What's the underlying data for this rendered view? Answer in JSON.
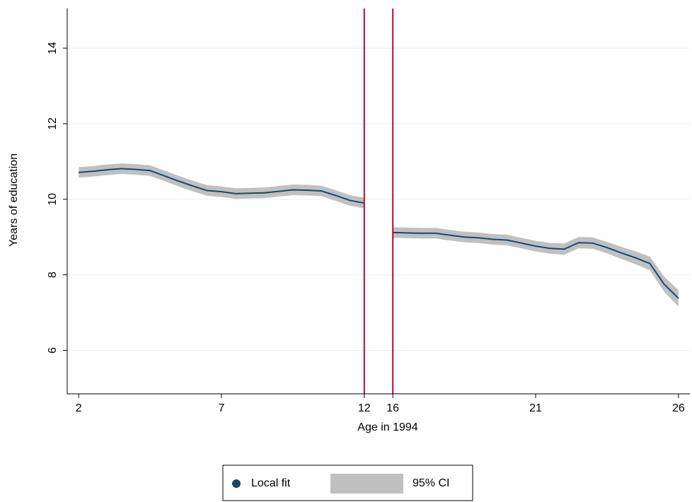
{
  "chart_data": {
    "type": "line",
    "xlabel": "Age in 1994",
    "ylabel": "Years of education",
    "xlim": [
      1.6,
      26.4
    ],
    "xbreak": [
      12,
      16
    ],
    "xticks": [
      2,
      7,
      12,
      16,
      21,
      26
    ],
    "ylim": [
      4.85,
      15.05
    ],
    "yticks": [
      6,
      8,
      10,
      12,
      14
    ],
    "grid": true,
    "reference_lines": {
      "x": [
        12,
        16
      ],
      "color": "#c10534"
    },
    "x": [
      2,
      2.5,
      3,
      3.5,
      4,
      4.5,
      5,
      5.5,
      6,
      6.5,
      7,
      7.5,
      8,
      8.5,
      9,
      9.5,
      10,
      10.5,
      11,
      11.5,
      12,
      null,
      16,
      16.5,
      17,
      17.5,
      18,
      18.5,
      19,
      19.5,
      20,
      20.5,
      21,
      21.5,
      22,
      22.5,
      23,
      23.5,
      24,
      24.5,
      25,
      25.5,
      26
    ],
    "series": [
      {
        "name": "Local fit",
        "color": "#1a476f",
        "values": [
          10.71,
          10.74,
          10.78,
          10.81,
          10.79,
          10.76,
          10.62,
          10.48,
          10.35,
          10.23,
          10.2,
          10.15,
          10.16,
          10.17,
          10.21,
          10.25,
          10.24,
          10.22,
          10.1,
          9.97,
          9.9,
          null,
          9.12,
          9.11,
          9.1,
          9.1,
          9.05,
          9.0,
          8.98,
          8.94,
          8.92,
          8.84,
          8.76,
          8.7,
          8.68,
          8.85,
          8.84,
          8.72,
          8.58,
          8.45,
          8.3,
          7.75,
          7.38
        ]
      }
    ],
    "band": {
      "name": "95% CI",
      "color": "#c0c0c0",
      "upper": [
        10.85,
        10.88,
        10.92,
        10.95,
        10.93,
        10.9,
        10.76,
        10.62,
        10.49,
        10.37,
        10.34,
        10.29,
        10.3,
        10.31,
        10.35,
        10.39,
        10.38,
        10.36,
        10.24,
        10.11,
        10.04,
        null,
        9.26,
        9.25,
        9.24,
        9.24,
        9.19,
        9.14,
        9.12,
        9.08,
        9.06,
        8.98,
        8.9,
        8.84,
        8.83,
        9.0,
        8.99,
        8.87,
        8.74,
        8.62,
        8.48,
        7.95,
        7.6
      ],
      "lower": [
        10.57,
        10.6,
        10.64,
        10.67,
        10.65,
        10.62,
        10.48,
        10.34,
        10.21,
        10.09,
        10.06,
        10.01,
        10.02,
        10.03,
        10.07,
        10.11,
        10.1,
        10.08,
        9.96,
        9.83,
        9.76,
        null,
        8.98,
        8.97,
        8.96,
        8.96,
        8.91,
        8.86,
        8.84,
        8.8,
        8.78,
        8.7,
        8.62,
        8.56,
        8.53,
        8.7,
        8.69,
        8.57,
        8.42,
        8.28,
        8.12,
        7.55,
        7.16
      ]
    }
  }
}
